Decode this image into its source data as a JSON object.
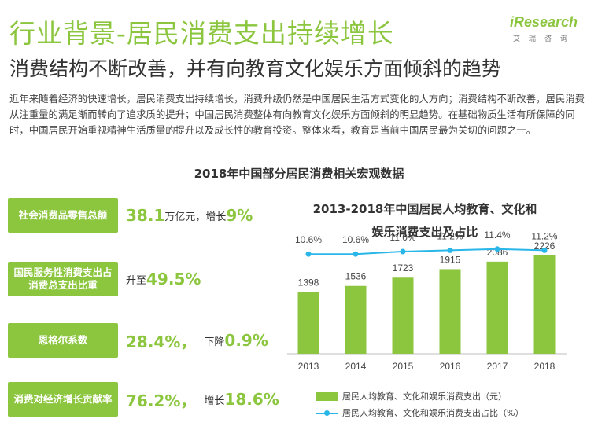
{
  "header": {
    "title": "行业背景-居民消费支出持续增长",
    "subtitle": "消费结构不断改善，并有向教育文化娱乐方面倾斜的趋势",
    "logo_word": "iResearch",
    "logo_cn": "艾瑞咨询"
  },
  "intro": "近年来随着经济的快速增长，居民消费支出持续增长，消费升级仍然是中国居民生活方式变化的大方向；消费结构不断改善，居民消费从注重量的满足渐而转向了追求质的提升；中国居民消费整体有向教育文化娱乐方面倾斜的明显趋势。在基础物质生活有所保障的同时，中国居民开始重视精神生活质量的提升以及成长性的教育投资。整体来看，教育是当前中国居民最为关切的问题之一。",
  "section_title": "2018年中国部分居民消费相关宏观数据",
  "metrics": [
    {
      "label": "社会消费品零售总额",
      "value": "38.1",
      "unit": "万亿元，增长",
      "change": "9%"
    },
    {
      "label": "国民服务性消费支出占消费总支出比重",
      "prefix": "升至",
      "value": "49.5%"
    },
    {
      "label": "恩格尔系数",
      "value": "28.4%，",
      "change_prefix": "下降",
      "change": "0.9%"
    },
    {
      "label": "消费对经济增长贡献率",
      "value": "76.2%，",
      "change_prefix": "增长",
      "change": "18.6%"
    }
  ],
  "chart_data": {
    "type": "bar",
    "title": "2013-2018年中国居民人均教育、文化和娱乐消费支出及占比",
    "title_lines": [
      "2013-2018年中国居民人均教育、文化和",
      "娱乐消费支出及占比"
    ],
    "categories": [
      "2013",
      "2014",
      "2015",
      "2016",
      "2017",
      "2018"
    ],
    "series": [
      {
        "name": "居民人均教育、文化和娱乐消费支出（元）",
        "type": "bar",
        "values": [
          1398,
          1536,
          1723,
          1915,
          2086,
          2226
        ]
      },
      {
        "name": "居民人均教育、文化和娱乐消费支出占比（%）",
        "type": "line",
        "values": [
          10.6,
          10.6,
          11.0,
          11.2,
          11.4,
          11.2
        ],
        "labels": [
          "10.6%",
          "10.6%",
          "11.0%",
          "11.2%",
          "11.4%",
          "11.2%"
        ]
      }
    ],
    "ylim_bar": [
      0,
      2500
    ],
    "ylim_line": [
      8,
      13
    ],
    "legend_position": "bottom",
    "colors": {
      "bar": "#8cc63f",
      "line": "#29b6e8"
    }
  }
}
